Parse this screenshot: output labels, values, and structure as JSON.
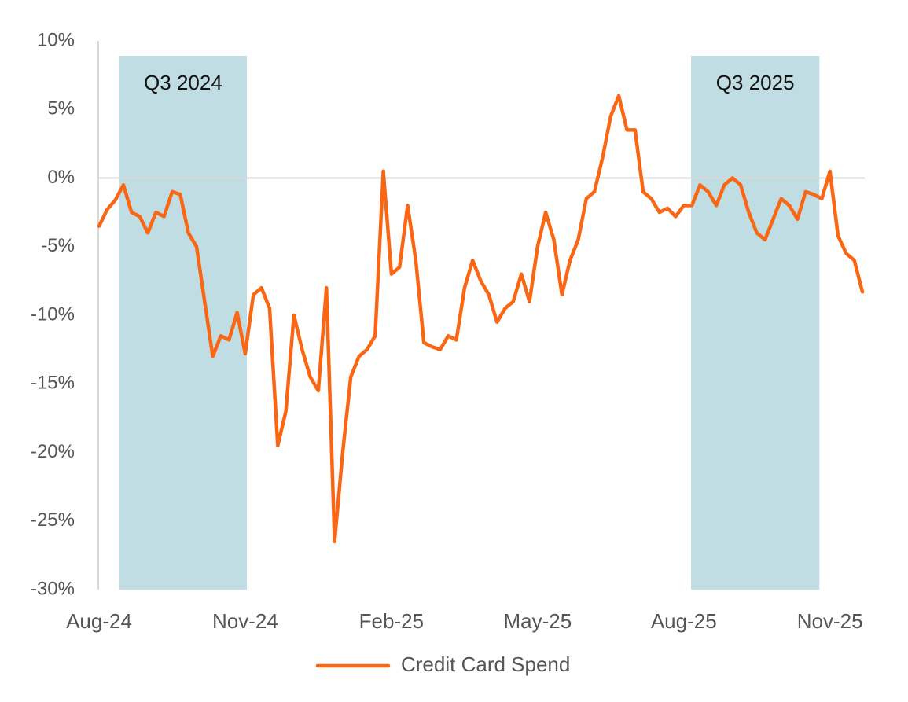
{
  "chart_data": {
    "type": "line",
    "categories": [
      "Aug-24",
      null,
      null,
      null,
      null,
      null,
      null,
      null,
      null,
      null,
      null,
      null,
      null,
      null,
      null,
      null,
      null,
      null,
      "Nov-24",
      null,
      null,
      null,
      null,
      null,
      null,
      null,
      null,
      null,
      null,
      null,
      null,
      null,
      null,
      null,
      null,
      null,
      "Feb-25",
      null,
      null,
      null,
      null,
      null,
      null,
      null,
      null,
      null,
      null,
      null,
      null,
      null,
      null,
      null,
      null,
      null,
      "May-25",
      null,
      null,
      null,
      null,
      null,
      null,
      null,
      null,
      null,
      null,
      null,
      null,
      null,
      null,
      null,
      null,
      null,
      "Aug-25",
      null,
      null,
      null,
      null,
      null,
      null,
      null,
      null,
      null,
      null,
      null,
      null,
      null,
      null,
      null,
      null,
      null,
      "Nov-25",
      null,
      null,
      null,
      null
    ],
    "series": [
      {
        "name": "Credit Card Spend",
        "color": "#fa6714",
        "values": [
          -3.5,
          -2.3,
          -1.6,
          -0.5,
          -2.5,
          -2.8,
          -4,
          -2.5,
          -2.8,
          -1,
          -1.2,
          -4,
          -5,
          -9,
          -13,
          -11.5,
          -11.8,
          -9.8,
          -12.8,
          -8.5,
          -8,
          -9.5,
          -19.5,
          -17,
          -10,
          -12.5,
          -14.5,
          -15.5,
          -8,
          -26.5,
          -20,
          -14.5,
          -13,
          -12.5,
          -11.5,
          0.5,
          -7,
          -6.5,
          -2,
          -6,
          -12,
          -12.3,
          -12.5,
          -11.5,
          -11.8,
          -8,
          -6,
          -7.5,
          -8.5,
          -10.5,
          -9.5,
          -9,
          -7,
          -9,
          -5,
          -2.5,
          -4.5,
          -8.5,
          -6,
          -4.5,
          -1.5,
          -1,
          1.5,
          4.5,
          6,
          3.5,
          3.5,
          -1,
          -1.5,
          -2.5,
          -2.2,
          -2.8,
          -2,
          -2,
          -0.5,
          -1,
          -2,
          -0.5,
          0,
          -0.5,
          -2.5,
          -4,
          -4.5,
          -3,
          -1.5,
          -2,
          -3,
          -1,
          -1.2,
          -1.5,
          0.5,
          -4.2,
          -5.5,
          -6,
          -8.3
        ]
      }
    ],
    "ylim": [
      -30,
      10
    ],
    "yticks": [
      {
        "value": 10,
        "label": "10%"
      },
      {
        "value": 5,
        "label": "5%"
      },
      {
        "value": 0,
        "label": "0%"
      },
      {
        "value": -5,
        "label": "-5%"
      },
      {
        "value": -10,
        "label": "-10%"
      },
      {
        "value": -15,
        "label": "-15%"
      },
      {
        "value": -20,
        "label": "-20%"
      },
      {
        "value": -25,
        "label": "-25%"
      },
      {
        "value": -30,
        "label": "-30%"
      }
    ],
    "bands": [
      {
        "label": "Q3 2024",
        "start": 2.5,
        "end": 18.2,
        "color": "#bfdde3"
      },
      {
        "label": "Q3 2025",
        "start": 72.9,
        "end": 88.7,
        "color": "#bfdde3"
      }
    ],
    "legend": "bottom"
  }
}
